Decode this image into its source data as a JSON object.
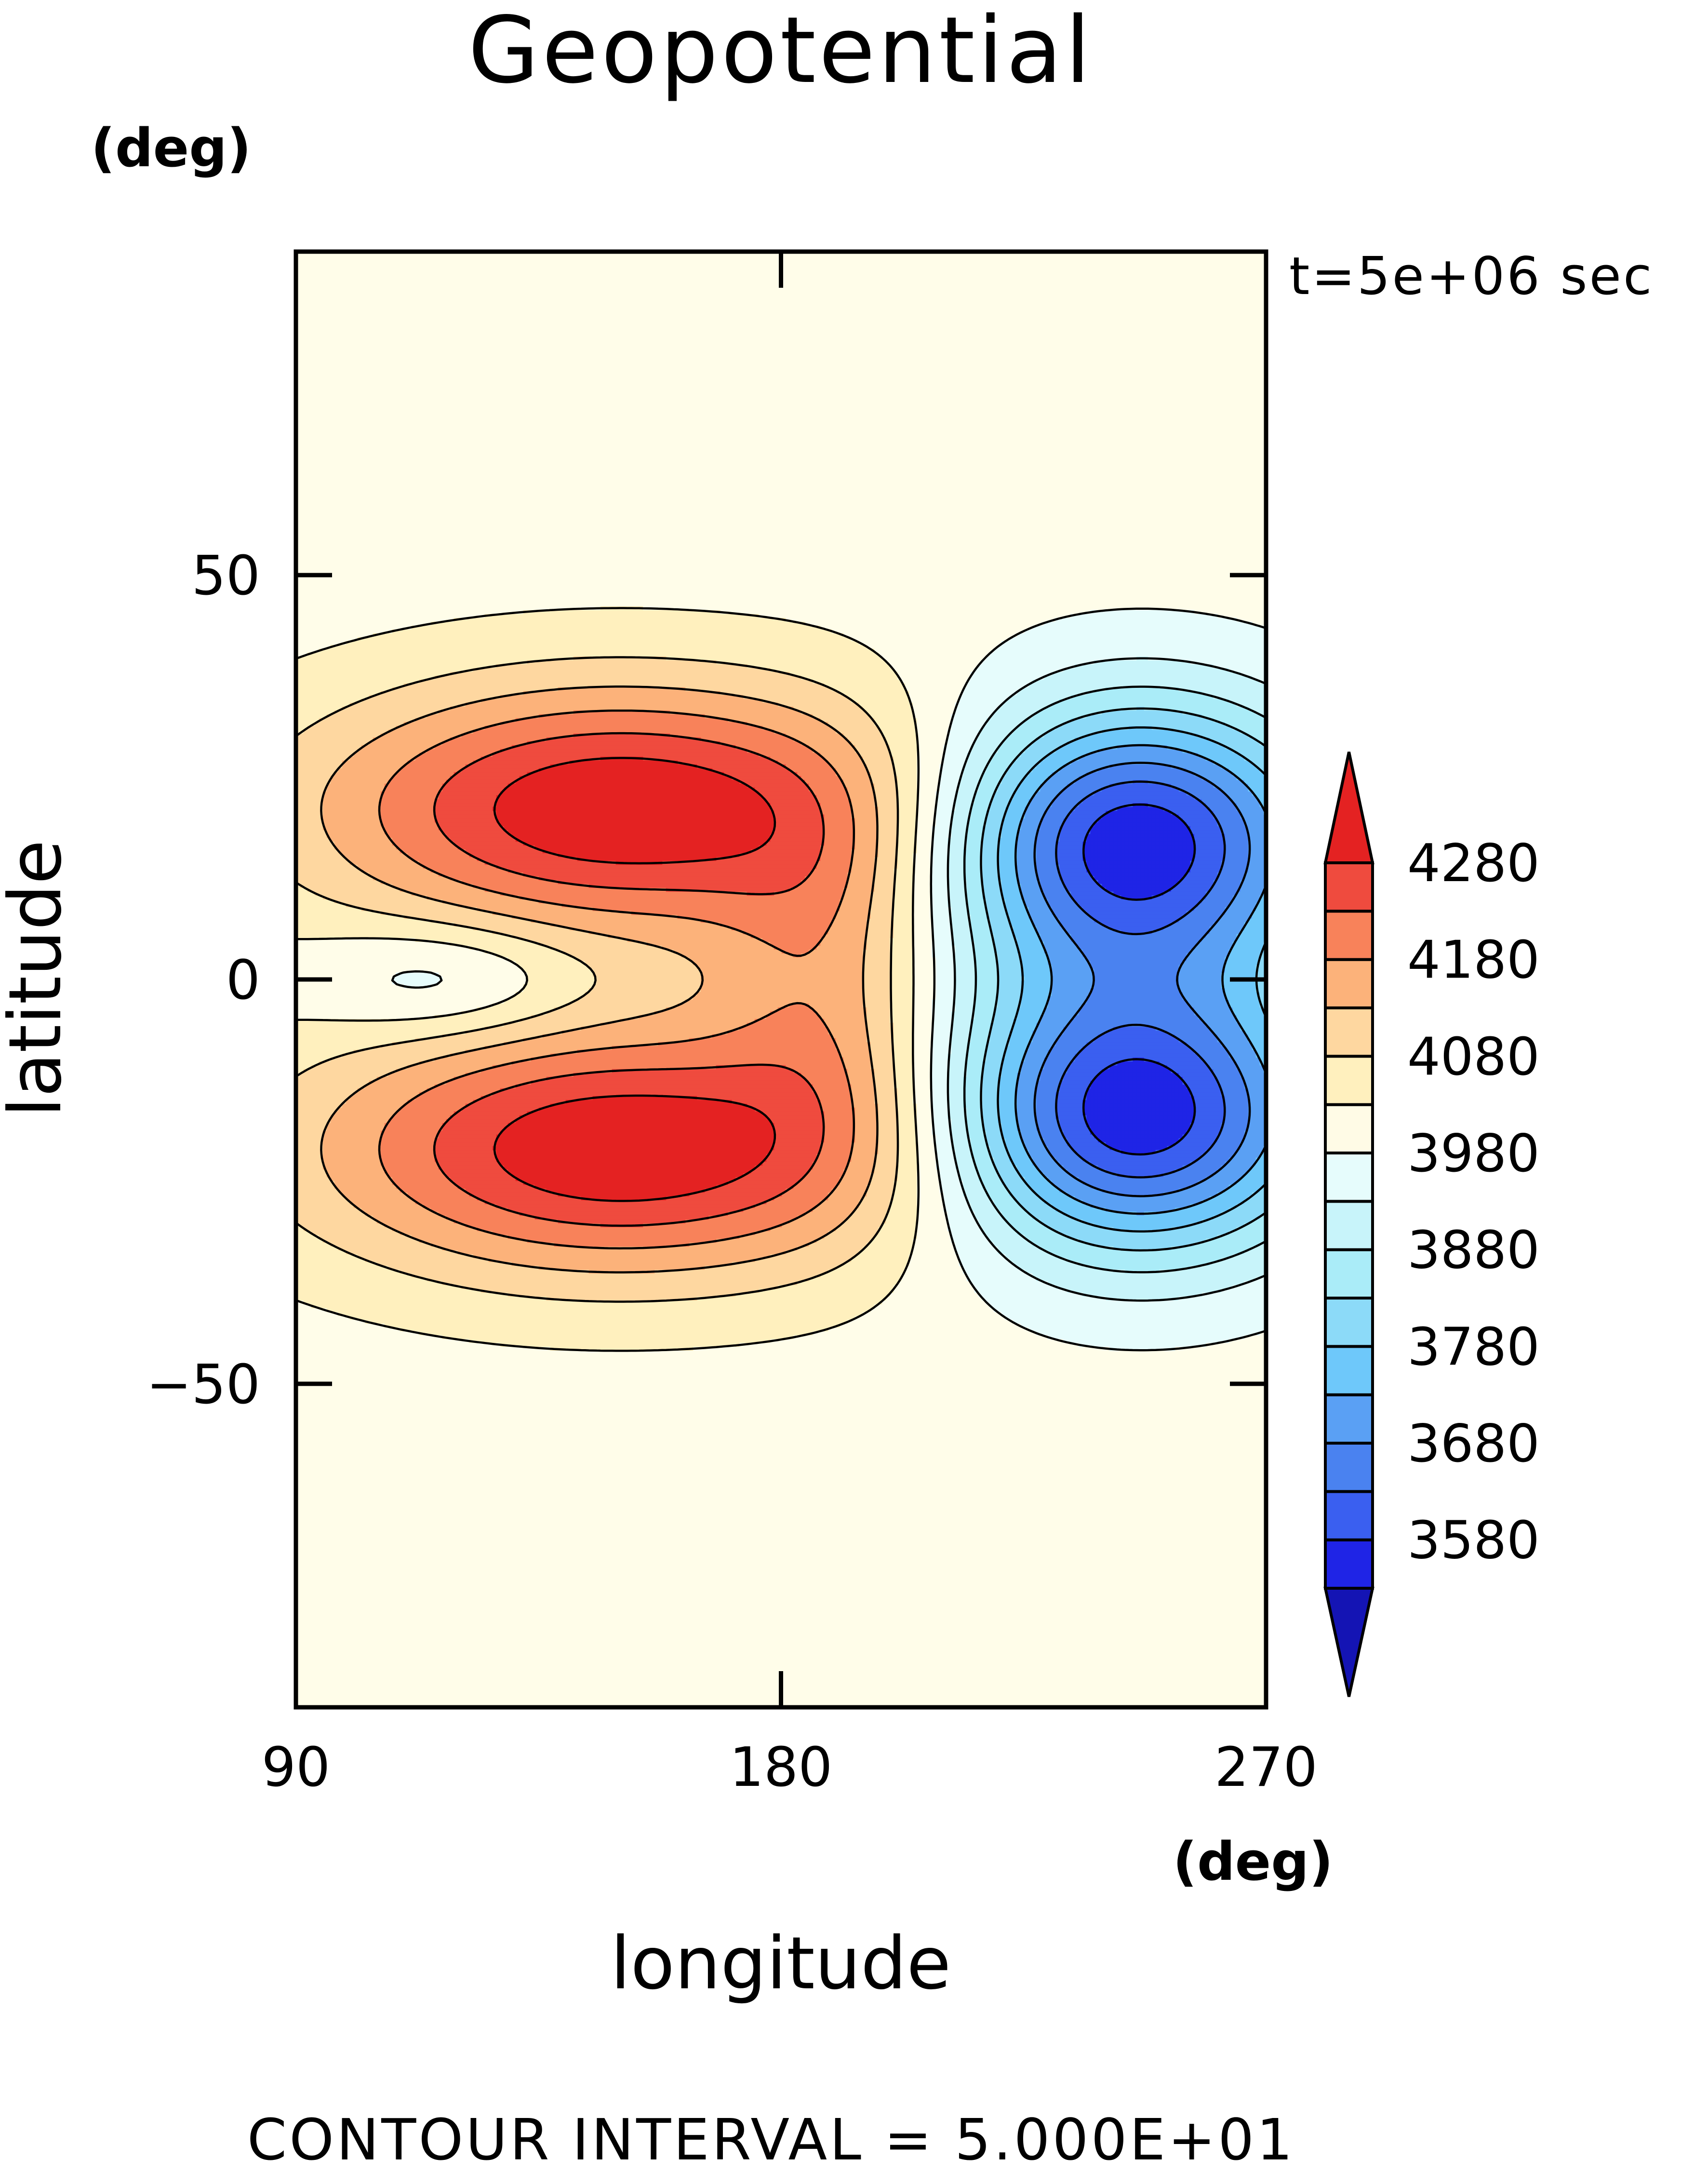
{
  "chart_data": {
    "type": "contour",
    "title": "Geopotential",
    "time_label": "t=5e+06 sec",
    "xlabel": "longitude",
    "ylabel": "latitude",
    "xunit": "(deg)",
    "yunit": "(deg)",
    "xlim": [
      90,
      270
    ],
    "ylim": [
      -90,
      90
    ],
    "xticks": [
      90,
      180,
      270
    ],
    "yticks": [
      50,
      0,
      -50
    ],
    "xtick_labels": [
      "90",
      "180",
      "270"
    ],
    "ytick_labels": [
      "50",
      "0",
      "−50"
    ],
    "contour_interval_label": "CONTOUR INTERVAL = 5.000E+01",
    "background_value": 4005,
    "features": [
      {
        "kind": "high",
        "lon": 150,
        "lat": 21,
        "peak": 4330,
        "sx": 40,
        "sy": 11
      },
      {
        "kind": "high",
        "lon": 150,
        "lat": -21,
        "peak": 4330,
        "sx": 40,
        "sy": 11
      },
      {
        "kind": "low",
        "lon": 245,
        "lat": 17,
        "peak": 3530,
        "sx": 25,
        "sy": 12
      },
      {
        "kind": "low",
        "lon": 245,
        "lat": -17,
        "peak": 3530,
        "sx": 25,
        "sy": 12
      },
      {
        "kind": "low",
        "lon": 118,
        "lat": 0,
        "peak": 3905,
        "sx": 18,
        "sy": 5
      },
      {
        "kind": "high",
        "lon": 190,
        "lat": 0,
        "peak": 4130,
        "sx": 15,
        "sy": 15
      }
    ],
    "colorbar": {
      "levels": [
        3530,
        3580,
        3630,
        3680,
        3730,
        3780,
        3830,
        3880,
        3930,
        3980,
        4030,
        4080,
        4130,
        4180,
        4230,
        4280
      ],
      "tick_labels": [
        "4280",
        "4180",
        "4080",
        "3980",
        "3880",
        "3780",
        "3680",
        "3580"
      ],
      "colors": [
        "#1414b4",
        "#1f24e6",
        "#3a5ff0",
        "#4a82f0",
        "#5aa0f4",
        "#6ec8fa",
        "#8cdaf8",
        "#aaecf8",
        "#c8f4fa",
        "#e6fcfc",
        "#fffbe6",
        "#fff0be",
        "#fed7a0",
        "#fcb27a",
        "#f8825a",
        "#ef4b3e",
        "#e42222"
      ]
    }
  }
}
